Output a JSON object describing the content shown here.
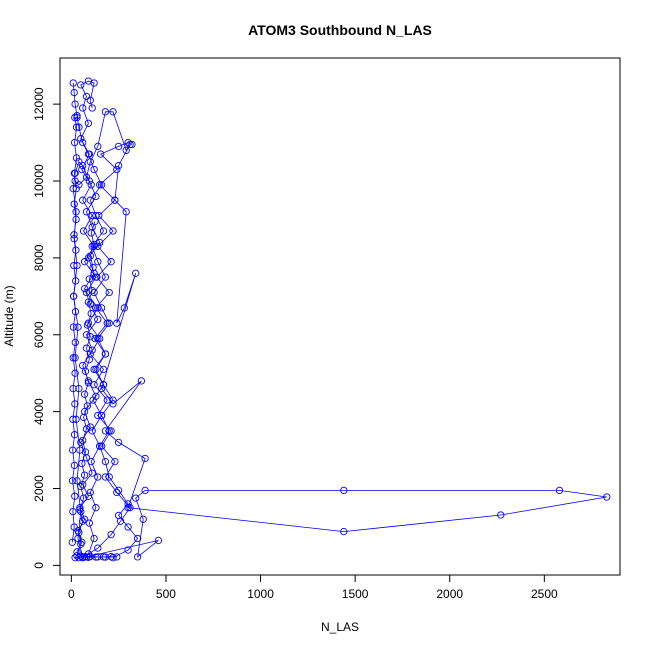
{
  "chart_data": {
    "type": "scatter",
    "title": "ATOM3 Southbound N_LAS",
    "xlabel": "N_LAS",
    "ylabel": "Altitude (m)",
    "xlim": [
      -60,
      2900
    ],
    "ylim": [
      -250,
      13200
    ],
    "xticks": [
      0,
      500,
      1000,
      1500,
      2000,
      2500
    ],
    "yticks": [
      0,
      2000,
      4000,
      6000,
      8000,
      10000,
      12000
    ],
    "grid": false,
    "colors": {
      "series": "#0000ff"
    },
    "marker": "open-circle",
    "connected": true,
    "series": [
      {
        "points": [
          [
            40,
            200
          ],
          [
            30,
            350
          ],
          [
            55,
            600
          ],
          [
            35,
            900
          ],
          [
            70,
            1200
          ],
          [
            45,
            1500
          ],
          [
            90,
            1800
          ],
          [
            60,
            2100
          ],
          [
            110,
            2400
          ],
          [
            80,
            2800
          ],
          [
            50,
            3200
          ],
          [
            100,
            3600
          ],
          [
            70,
            4000
          ],
          [
            130,
            4400
          ],
          [
            90,
            4800
          ],
          [
            60,
            5200
          ],
          [
            110,
            5600
          ],
          [
            80,
            6000
          ],
          [
            140,
            6400
          ],
          [
            100,
            6800
          ],
          [
            70,
            7200
          ],
          [
            120,
            7600
          ],
          [
            90,
            8000
          ],
          [
            150,
            8400
          ],
          [
            110,
            8800
          ],
          [
            80,
            9200
          ],
          [
            130,
            9600
          ],
          [
            95,
            10000
          ],
          [
            60,
            10400
          ],
          [
            40,
            10500
          ],
          [
            20,
            10200
          ],
          [
            10,
            9800
          ],
          [
            25,
            9200
          ],
          [
            15,
            8500
          ],
          [
            30,
            7800
          ],
          [
            12,
            7000
          ],
          [
            35,
            6200
          ],
          [
            20,
            5400
          ],
          [
            40,
            4600
          ],
          [
            25,
            3800
          ],
          [
            45,
            3000
          ],
          [
            30,
            2200
          ],
          [
            50,
            1400
          ],
          [
            35,
            700
          ],
          [
            60,
            220
          ],
          [
            90,
            210
          ],
          [
            130,
            215
          ],
          [
            170,
            220
          ],
          [
            210,
            225
          ],
          [
            240,
            220
          ],
          [
            180,
            215
          ],
          [
            140,
            220
          ],
          [
            100,
            230
          ],
          [
            70,
            220
          ],
          [
            50,
            240
          ]
        ]
      },
      {
        "points": [
          [
            60,
            200
          ],
          [
            140,
            450
          ],
          [
            210,
            800
          ],
          [
            260,
            1150
          ],
          [
            310,
            1500
          ],
          [
            240,
            1900
          ],
          [
            180,
            2300
          ],
          [
            230,
            2700
          ],
          [
            160,
            3100
          ],
          [
            210,
            3500
          ],
          [
            140,
            3900
          ],
          [
            190,
            4300
          ],
          [
            120,
            4700
          ],
          [
            170,
            5100
          ],
          [
            100,
            5500
          ],
          [
            150,
            5900
          ],
          [
            90,
            6300
          ],
          [
            140,
            6700
          ],
          [
            80,
            7100
          ],
          [
            130,
            7500
          ],
          [
            70,
            7900
          ],
          [
            120,
            8300
          ],
          [
            65,
            8700
          ],
          [
            110,
            9100
          ],
          [
            60,
            9500
          ],
          [
            105,
            9900
          ],
          [
            55,
            10300
          ],
          [
            95,
            10700
          ],
          [
            50,
            11100
          ],
          [
            90,
            11500
          ],
          [
            60,
            11900
          ],
          [
            80,
            12200
          ],
          [
            50,
            12500
          ],
          [
            90,
            12600
          ],
          [
            120,
            12550
          ],
          [
            100,
            12100
          ],
          [
            110,
            11900
          ]
        ]
      },
      {
        "points": [
          [
            220,
            200
          ],
          [
            300,
            400
          ],
          [
            350,
            700
          ],
          [
            300,
            1000
          ],
          [
            250,
            1300
          ],
          [
            300,
            1600
          ],
          [
            250,
            1950
          ],
          [
            200,
            2300
          ],
          [
            180,
            2700
          ],
          [
            150,
            3100
          ],
          [
            200,
            3500
          ],
          [
            160,
            3900
          ],
          [
            220,
            4300
          ],
          [
            170,
            4700
          ],
          [
            130,
            5100
          ],
          [
            180,
            5500
          ],
          [
            140,
            5900
          ],
          [
            200,
            6300
          ],
          [
            160,
            6700
          ],
          [
            120,
            7100
          ],
          [
            180,
            7500
          ],
          [
            140,
            7900
          ],
          [
            110,
            8300
          ],
          [
            170,
            8700
          ],
          [
            130,
            9100
          ],
          [
            100,
            9500
          ],
          [
            160,
            9900
          ],
          [
            120,
            10300
          ],
          [
            90,
            10700
          ],
          [
            60,
            11000
          ],
          [
            40,
            11400
          ],
          [
            30,
            11700
          ],
          [
            20,
            12000
          ],
          [
            15,
            12300
          ],
          [
            10,
            12550
          ]
        ]
      },
      {
        "points": [
          [
            20,
            200
          ],
          [
            80,
            220
          ],
          [
            460,
            650
          ],
          [
            350,
            220
          ],
          [
            380,
            1200
          ],
          [
            340,
            1750
          ],
          [
            390,
            1950
          ],
          [
            1440,
            1950
          ],
          [
            2580,
            1950
          ],
          [
            2830,
            1780
          ],
          [
            2270,
            1310
          ],
          [
            1440,
            880
          ],
          [
            300,
            1500
          ],
          [
            390,
            2780
          ],
          [
            250,
            3200
          ],
          [
            180,
            3500
          ],
          [
            370,
            4800
          ],
          [
            220,
            4200
          ],
          [
            160,
            4600
          ],
          [
            340,
            7600
          ],
          [
            280,
            6700
          ],
          [
            240,
            6300
          ],
          [
            290,
            9200
          ],
          [
            230,
            9500
          ],
          [
            250,
            10400
          ],
          [
            310,
            10950
          ],
          [
            290,
            10800
          ],
          [
            220,
            11800
          ],
          [
            180,
            11800
          ],
          [
            140,
            10900
          ],
          [
            100,
            10500
          ],
          [
            80,
            10100
          ],
          [
            40,
            9900
          ],
          [
            20,
            10000
          ]
        ]
      },
      {
        "points": [
          [
            5,
            600
          ],
          [
            15,
            1000
          ],
          [
            8,
            1400
          ],
          [
            18,
            1800
          ],
          [
            6,
            2200
          ],
          [
            16,
            2600
          ],
          [
            7,
            3000
          ],
          [
            17,
            3400
          ],
          [
            8,
            3800
          ],
          [
            19,
            4200
          ],
          [
            9,
            4600
          ],
          [
            20,
            5000
          ],
          [
            10,
            5400
          ],
          [
            21,
            5800
          ],
          [
            11,
            6200
          ],
          [
            22,
            6600
          ],
          [
            12,
            7000
          ],
          [
            23,
            7400
          ],
          [
            13,
            7800
          ],
          [
            24,
            8200
          ],
          [
            14,
            8600
          ],
          [
            25,
            9000
          ],
          [
            15,
            9400
          ],
          [
            26,
            9800
          ],
          [
            16,
            10200
          ],
          [
            27,
            10600
          ],
          [
            17,
            11000
          ],
          [
            28,
            11400
          ],
          [
            18,
            11650
          ],
          [
            30,
            11650
          ]
        ]
      },
      {
        "points": [
          [
            90,
            300
          ],
          [
            120,
            700
          ],
          [
            95,
            1100
          ],
          [
            130,
            1500
          ],
          [
            100,
            1900
          ],
          [
            140,
            2300
          ],
          [
            105,
            2700
          ],
          [
            150,
            3100
          ],
          [
            110,
            3500
          ],
          [
            160,
            3900
          ],
          [
            115,
            4300
          ],
          [
            170,
            4700
          ],
          [
            120,
            5100
          ],
          [
            180,
            5500
          ],
          [
            125,
            5900
          ],
          [
            190,
            6300
          ],
          [
            130,
            6700
          ],
          [
            200,
            7100
          ],
          [
            135,
            7500
          ],
          [
            210,
            7900
          ],
          [
            140,
            8300
          ],
          [
            220,
            8700
          ],
          [
            145,
            9100
          ],
          [
            230,
            9500
          ],
          [
            150,
            9900
          ],
          [
            240,
            10300
          ],
          [
            155,
            10700
          ],
          [
            250,
            10900
          ],
          [
            300,
            11000
          ],
          [
            320,
            10950
          ]
        ]
      },
      {
        "points": [
          [
            30,
            250
          ],
          [
            50,
            550
          ],
          [
            40,
            850
          ],
          [
            60,
            1150
          ],
          [
            45,
            1450
          ],
          [
            65,
            1750
          ],
          [
            50,
            2050
          ],
          [
            70,
            2350
          ],
          [
            55,
            2650
          ],
          [
            75,
            2950
          ],
          [
            60,
            3250
          ],
          [
            80,
            3550
          ],
          [
            65,
            3850
          ],
          [
            85,
            4150
          ],
          [
            70,
            4450
          ],
          [
            90,
            4750
          ],
          [
            75,
            5050
          ],
          [
            95,
            5350
          ],
          [
            80,
            5650
          ],
          [
            100,
            5950
          ],
          [
            85,
            6250
          ],
          [
            105,
            6550
          ],
          [
            90,
            6850
          ],
          [
            110,
            7150
          ],
          [
            95,
            7450
          ],
          [
            115,
            7750
          ],
          [
            100,
            8050
          ],
          [
            120,
            8350
          ],
          [
            105,
            8650
          ],
          [
            125,
            8950
          ]
        ]
      }
    ]
  }
}
